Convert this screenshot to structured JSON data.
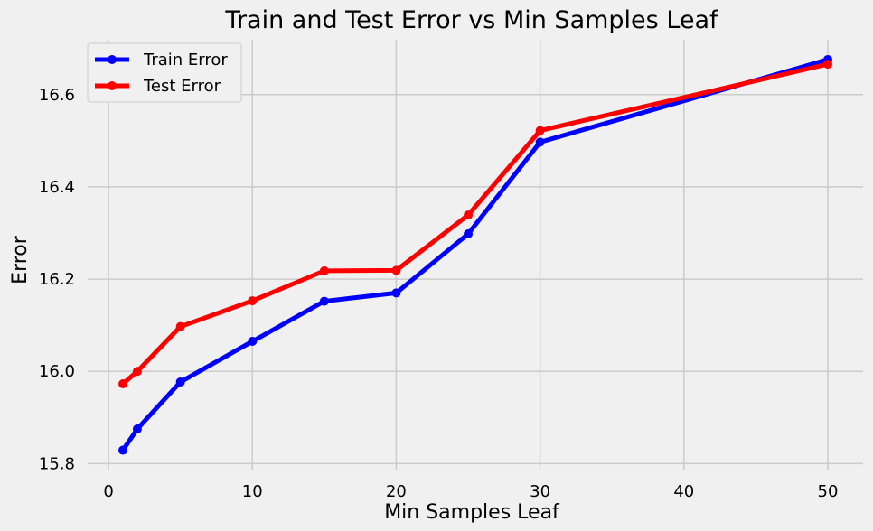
{
  "chart_data": {
    "type": "line",
    "title": "Train and Test Error vs Min Samples Leaf",
    "xlabel": "Min Samples Leaf",
    "ylabel": "Error",
    "x": [
      1,
      2,
      5,
      10,
      15,
      20,
      25,
      30,
      50
    ],
    "series": [
      {
        "name": "Train Error",
        "color": "#0000ff",
        "values": [
          15.829,
          15.875,
          15.977,
          16.065,
          16.152,
          16.17,
          16.298,
          16.497,
          16.676
        ]
      },
      {
        "name": "Test Error",
        "color": "#ff0000",
        "values": [
          15.973,
          16.0,
          16.097,
          16.153,
          16.218,
          16.219,
          16.339,
          16.522,
          16.666
        ]
      }
    ],
    "xlim": [
      -1.45,
      52.45
    ],
    "ylim": [
      15.787,
      16.719
    ],
    "xticks": [
      0,
      10,
      20,
      30,
      40,
      50
    ],
    "yticks": [
      15.8,
      16.0,
      16.2,
      16.4,
      16.6
    ],
    "ytick_labels": [
      "15.8",
      "16.0",
      "16.2",
      "16.4",
      "16.6"
    ],
    "grid": true,
    "legend_position": "top-left"
  }
}
